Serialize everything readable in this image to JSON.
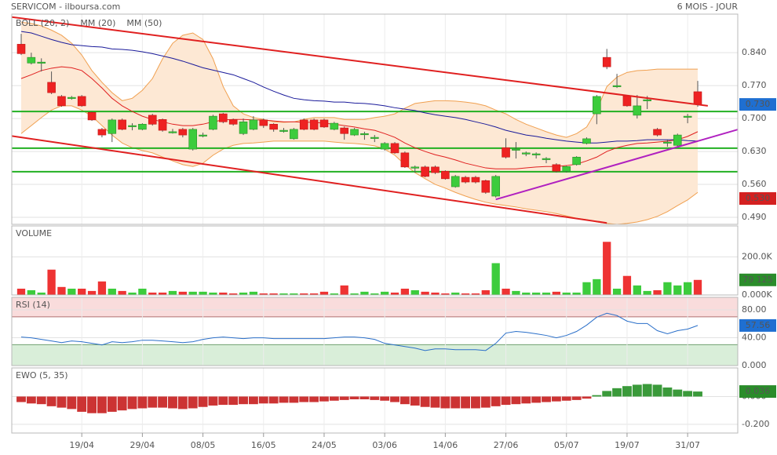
{
  "header": {
    "title": "SERVICOM - ilboursa.com",
    "period": "6 MOIS - JOUR"
  },
  "chart_data": [
    {
      "type": "candlestick",
      "categories": [
        null,
        null,
        null,
        null,
        null,
        null,
        "19/04",
        null,
        null,
        null,
        null,
        null,
        "29/04",
        null,
        null,
        null,
        null,
        null,
        "08/05",
        null,
        null,
        null,
        null,
        null,
        "16/05",
        null,
        null,
        null,
        null,
        null,
        "24/05",
        null,
        null,
        null,
        null,
        null,
        "03/06",
        null,
        null,
        null,
        null,
        null,
        "14/06",
        null,
        null,
        null,
        null,
        null,
        "27/06",
        null,
        null,
        null,
        null,
        null,
        "05/07",
        null,
        null,
        null,
        null,
        null,
        "19/07",
        null,
        null,
        null,
        null,
        null,
        "31/07",
        null
      ],
      "open": [
        0.858,
        0.818,
        0.82,
        0.777,
        0.747,
        0.745,
        0.747,
        0.713,
        0.677,
        0.668,
        0.697,
        0.685,
        0.677,
        0.707,
        0.698,
        0.672,
        0.677,
        0.635,
        0.665,
        0.677,
        0.71,
        0.698,
        0.668,
        0.677,
        0.697,
        0.688,
        0.675,
        0.657,
        0.697,
        0.697,
        0.697,
        0.677,
        0.68,
        0.665,
        0.668,
        0.66,
        0.635,
        0.647,
        0.627,
        0.597,
        0.597,
        0.597,
        0.588,
        0.555,
        0.575,
        0.575,
        0.568,
        0.535,
        0.638,
        0.635,
        0.627,
        0.625,
        0.615,
        0.602,
        0.588,
        0.602,
        0.647,
        0.71,
        0.83,
        0.77,
        0.748,
        0.707,
        0.74,
        0.677,
        0.65,
        0.643,
        0.705,
        0.757
      ],
      "high": [
        0.88,
        0.84,
        0.828,
        0.8,
        0.75,
        0.748,
        0.75,
        0.715,
        0.68,
        0.7,
        0.7,
        0.69,
        0.69,
        0.71,
        0.7,
        0.678,
        0.68,
        0.68,
        0.67,
        0.708,
        0.712,
        0.7,
        0.7,
        0.705,
        0.7,
        0.69,
        0.68,
        0.68,
        0.7,
        0.7,
        0.7,
        0.693,
        0.683,
        0.68,
        0.672,
        0.665,
        0.65,
        0.65,
        0.63,
        0.6,
        0.6,
        0.6,
        0.59,
        0.58,
        0.578,
        0.578,
        0.57,
        0.58,
        0.658,
        0.65,
        0.63,
        0.628,
        0.618,
        0.605,
        0.6,
        0.62,
        0.66,
        0.75,
        0.848,
        0.795,
        0.75,
        0.75,
        0.748,
        0.68,
        0.655,
        0.668,
        0.71,
        0.78
      ],
      "low": [
        0.835,
        0.815,
        0.8,
        0.752,
        0.725,
        0.74,
        0.725,
        0.695,
        0.66,
        0.65,
        0.675,
        0.675,
        0.675,
        0.685,
        0.672,
        0.668,
        0.66,
        0.632,
        0.66,
        0.675,
        0.69,
        0.685,
        0.665,
        0.675,
        0.68,
        0.672,
        0.67,
        0.655,
        0.675,
        0.675,
        0.68,
        0.675,
        0.655,
        0.663,
        0.655,
        0.65,
        0.632,
        0.625,
        0.595,
        0.585,
        0.575,
        0.582,
        0.57,
        0.553,
        0.562,
        0.562,
        0.54,
        0.532,
        0.615,
        0.615,
        0.62,
        0.615,
        0.605,
        0.585,
        0.585,
        0.6,
        0.645,
        0.688,
        0.805,
        0.765,
        0.725,
        0.7,
        0.72,
        0.662,
        0.64,
        0.64,
        0.69,
        0.725
      ],
      "close": [
        0.838,
        0.83,
        0.82,
        0.755,
        0.727,
        0.745,
        0.727,
        0.697,
        0.665,
        0.697,
        0.677,
        0.685,
        0.688,
        0.688,
        0.675,
        0.672,
        0.665,
        0.677,
        0.665,
        0.705,
        0.693,
        0.688,
        0.693,
        0.697,
        0.685,
        0.677,
        0.675,
        0.677,
        0.677,
        0.677,
        0.682,
        0.69,
        0.668,
        0.677,
        0.668,
        0.66,
        0.647,
        0.627,
        0.597,
        0.597,
        0.577,
        0.585,
        0.572,
        0.577,
        0.565,
        0.565,
        0.543,
        0.577,
        0.618,
        0.635,
        0.627,
        0.625,
        0.615,
        0.588,
        0.598,
        0.618,
        0.657,
        0.747,
        0.81,
        0.77,
        0.727,
        0.727,
        0.74,
        0.665,
        0.65,
        0.665,
        0.705,
        0.73
      ],
      "up_color": "#3ccc3c",
      "down_color": "#ee2222",
      "bands": {
        "name": "BOLL (20, 2)",
        "color": "#f0a050",
        "fill": "#fde8d4",
        "upper": [
          0.905,
          0.902,
          0.897,
          0.888,
          0.877,
          0.86,
          0.835,
          0.802,
          0.777,
          0.755,
          0.738,
          0.743,
          0.76,
          0.785,
          0.827,
          0.86,
          0.877,
          0.882,
          0.868,
          0.827,
          0.768,
          0.727,
          0.71,
          0.702,
          0.698,
          0.693,
          0.692,
          0.693,
          0.698,
          0.702,
          0.702,
          0.702,
          0.698,
          0.698,
          0.698,
          0.702,
          0.705,
          0.71,
          0.722,
          0.732,
          0.735,
          0.738,
          0.738,
          0.737,
          0.735,
          0.732,
          0.727,
          0.718,
          0.71,
          0.698,
          0.688,
          0.68,
          0.672,
          0.665,
          0.66,
          0.668,
          0.682,
          0.718,
          0.768,
          0.788,
          0.798,
          0.802,
          0.803,
          0.805,
          0.805,
          0.805,
          0.805,
          0.805
        ],
        "lower": [
          0.668,
          0.685,
          0.702,
          0.718,
          0.727,
          0.727,
          0.718,
          0.705,
          0.685,
          0.665,
          0.648,
          0.638,
          0.632,
          0.627,
          0.618,
          0.61,
          0.602,
          0.598,
          0.605,
          0.622,
          0.635,
          0.643,
          0.647,
          0.648,
          0.65,
          0.652,
          0.652,
          0.652,
          0.652,
          0.652,
          0.652,
          0.65,
          0.648,
          0.647,
          0.645,
          0.642,
          0.635,
          0.622,
          0.602,
          0.585,
          0.572,
          0.56,
          0.552,
          0.543,
          0.535,
          0.528,
          0.522,
          0.518,
          0.515,
          0.512,
          0.508,
          0.505,
          0.502,
          0.498,
          0.493,
          0.488,
          0.485,
          0.48,
          0.477,
          0.475,
          0.477,
          0.48,
          0.485,
          0.492,
          0.502,
          0.515,
          0.527,
          0.543
        ]
      },
      "series": [
        {
          "name": "MM (20)",
          "color": "#e02020",
          "values": [
            0.785,
            0.793,
            0.802,
            0.807,
            0.81,
            0.808,
            0.802,
            0.785,
            0.765,
            0.743,
            0.727,
            0.715,
            0.705,
            0.698,
            0.693,
            0.688,
            0.685,
            0.685,
            0.688,
            0.693,
            0.697,
            0.698,
            0.698,
            0.697,
            0.697,
            0.695,
            0.693,
            0.693,
            0.692,
            0.692,
            0.69,
            0.688,
            0.685,
            0.682,
            0.678,
            0.675,
            0.668,
            0.66,
            0.648,
            0.638,
            0.63,
            0.623,
            0.618,
            0.612,
            0.605,
            0.6,
            0.595,
            0.593,
            0.593,
            0.593,
            0.595,
            0.597,
            0.598,
            0.598,
            0.6,
            0.603,
            0.61,
            0.618,
            0.63,
            0.638,
            0.643,
            0.647,
            0.648,
            0.65,
            0.652,
            0.655,
            0.662,
            0.672
          ]
        },
        {
          "name": "MM (50)",
          "color": "#1a1a9a",
          "values": [
            0.885,
            0.882,
            0.875,
            0.868,
            0.862,
            0.857,
            0.855,
            0.853,
            0.852,
            0.848,
            0.847,
            0.845,
            0.842,
            0.838,
            0.833,
            0.828,
            0.822,
            0.815,
            0.808,
            0.803,
            0.798,
            0.793,
            0.785,
            0.777,
            0.767,
            0.758,
            0.75,
            0.743,
            0.74,
            0.738,
            0.737,
            0.735,
            0.735,
            0.733,
            0.732,
            0.73,
            0.727,
            0.723,
            0.72,
            0.717,
            0.712,
            0.708,
            0.705,
            0.702,
            0.698,
            0.693,
            0.688,
            0.682,
            0.675,
            0.67,
            0.665,
            0.662,
            0.658,
            0.655,
            0.652,
            0.65,
            0.648,
            0.648,
            0.65,
            0.652,
            0.652,
            0.653,
            0.655,
            0.655,
            0.655,
            0.655,
            0.653,
            0.652
          ]
        }
      ],
      "levels": {
        "color": "#22b022",
        "values": [
          0.715,
          0.637,
          0.587
        ]
      },
      "trendlines": [
        {
          "color": "#e02020",
          "x": [
            -1,
            68
          ],
          "y": [
            0.916,
            0.727
          ]
        },
        {
          "color": "#e02020",
          "x": [
            -1,
            58
          ],
          "y": [
            0.663,
            0.478
          ]
        },
        {
          "color": "#b020c0",
          "x": [
            47,
            72
          ],
          "y": [
            0.528,
            0.683
          ]
        }
      ],
      "tags": [
        {
          "value": 0.73,
          "label": "0.730",
          "color": "#1f6fd1"
        },
        {
          "value": 0.53,
          "label": "0.530",
          "color": "#d42020"
        }
      ],
      "ylim": [
        0.475,
        0.922
      ],
      "yticks": [
        {
          "value": 0.84,
          "label": "0.840"
        },
        {
          "value": 0.77,
          "label": "0.770"
        },
        {
          "value": 0.7,
          "label": "0.700"
        },
        {
          "value": 0.63,
          "label": "0.630"
        },
        {
          "value": 0.56,
          "label": "0.560"
        },
        {
          "value": 0.49,
          "label": "0.490"
        }
      ],
      "grid": true
    },
    {
      "type": "bar",
      "title": "VOLUME",
      "title_color": "#33aa33",
      "values": [
        33000,
        25000,
        12500,
        133000,
        42000,
        33000,
        33000,
        21000,
        71000,
        33000,
        21000,
        12500,
        33000,
        12500,
        12500,
        21000,
        17000,
        17000,
        17000,
        12500,
        12500,
        8000,
        12500,
        17000,
        8000,
        8000,
        8000,
        8000,
        8000,
        8000,
        17000,
        8000,
        50000,
        8000,
        17000,
        8000,
        17000,
        12500,
        33000,
        25000,
        17000,
        12500,
        8000,
        12500,
        8000,
        8000,
        25000,
        167000,
        33000,
        21000,
        12500,
        12500,
        12500,
        17000,
        12500,
        12500,
        67000,
        83000,
        279000,
        33000,
        100000,
        50000,
        21000,
        25000,
        67000,
        50000,
        67000,
        79125
      ],
      "up_color": "#3ccc3c",
      "down_color": "#ee3333",
      "tags": [
        {
          "value": 79125,
          "label": "79 125",
          "color": "#2a8c2a"
        }
      ],
      "ylim": [
        0,
        362500
      ],
      "yticks": [
        {
          "value": 200000,
          "label": "200.0K"
        },
        {
          "value": 0,
          "label": "0.000K"
        }
      ],
      "grid": true
    },
    {
      "type": "line",
      "title": "RSI (14)",
      "title_color": "#2a5fb0",
      "color": "#2a6fc9",
      "values": [
        41.0,
        39.9,
        37.6,
        35.3,
        33.0,
        35.3,
        34.2,
        31.9,
        29.6,
        34.2,
        33.0,
        34.2,
        36.4,
        36.4,
        35.3,
        34.2,
        33.0,
        34.2,
        37.6,
        39.9,
        41.0,
        39.9,
        38.7,
        39.9,
        39.9,
        38.7,
        38.7,
        38.7,
        38.7,
        38.7,
        38.7,
        39.9,
        41.0,
        41.0,
        39.9,
        37.6,
        31.9,
        29.6,
        27.3,
        25.1,
        21.6,
        23.9,
        23.9,
        22.8,
        22.8,
        22.8,
        21.6,
        31.9,
        46.7,
        49.0,
        47.8,
        45.6,
        43.3,
        39.9,
        43.3,
        49.0,
        58.1,
        69.5,
        75.2,
        71.8,
        63.8,
        60.4,
        60.4,
        50.1,
        45.6,
        50.1,
        52.4,
        57.56
      ],
      "zones": {
        "overbought": 70,
        "oversold": 30,
        "overbought_color": "#f9dcdc",
        "oversold_color": "#d9eed9"
      },
      "tags": [
        {
          "value": 57.56,
          "label": "57.56",
          "color": "#1f6fd1"
        }
      ],
      "ylim": [
        0,
        98
      ],
      "yticks": [
        {
          "value": 80,
          "label": "80.00"
        },
        {
          "value": 40,
          "label": "40.00"
        },
        {
          "value": 0,
          "label": "0.000"
        }
      ],
      "grid": true
    },
    {
      "type": "bar",
      "title": "EWO (5, 35)",
      "title_color": "#2a7a2a",
      "values": [
        -0.04,
        -0.05,
        -0.055,
        -0.07,
        -0.08,
        -0.09,
        -0.11,
        -0.12,
        -0.12,
        -0.11,
        -0.1,
        -0.09,
        -0.085,
        -0.08,
        -0.08,
        -0.085,
        -0.09,
        -0.085,
        -0.075,
        -0.065,
        -0.06,
        -0.06,
        -0.055,
        -0.055,
        -0.05,
        -0.05,
        -0.045,
        -0.045,
        -0.04,
        -0.04,
        -0.035,
        -0.03,
        -0.025,
        -0.02,
        -0.02,
        -0.025,
        -0.03,
        -0.04,
        -0.055,
        -0.065,
        -0.075,
        -0.08,
        -0.085,
        -0.085,
        -0.085,
        -0.085,
        -0.08,
        -0.07,
        -0.06,
        -0.055,
        -0.05,
        -0.045,
        -0.04,
        -0.035,
        -0.03,
        -0.025,
        -0.015,
        0.01,
        0.04,
        0.06,
        0.075,
        0.085,
        0.09,
        0.085,
        0.065,
        0.05,
        0.04,
        0.036
      ],
      "up_color": "#3a9a3a",
      "down_color": "#cc3333",
      "tags": [
        {
          "value": 0.036,
          "label": "0.036",
          "color": "#2a8c2a"
        }
      ],
      "ylim": [
        -0.263,
        0.206
      ],
      "yticks": [
        {
          "value": 0,
          "label": "0.000"
        },
        {
          "value": -0.2,
          "label": "-0.200"
        }
      ],
      "grid": true
    }
  ]
}
